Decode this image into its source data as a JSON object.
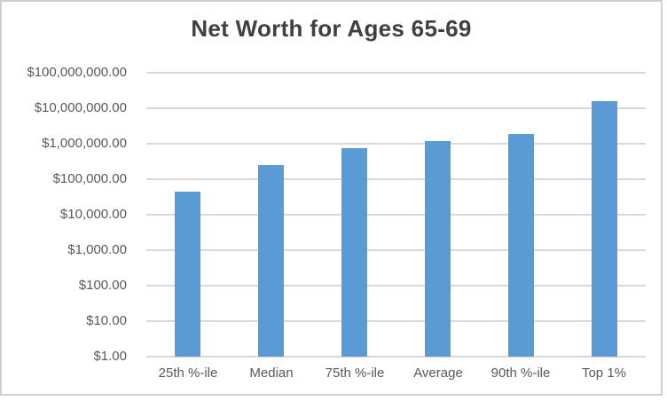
{
  "chart_data": {
    "type": "bar",
    "title": "Net Worth for Ages 65-69",
    "categories": [
      "25th %-ile",
      "Median",
      "75th %-ile",
      "Average",
      "90th %-ile",
      "Top 1%"
    ],
    "values": [
      44000,
      250000,
      760000,
      1200000,
      1900000,
      16000000
    ],
    "series_name": "Net Worth",
    "xlabel": "",
    "ylabel": "",
    "y_axis": {
      "scale": "log",
      "min": 1,
      "max": 100000000,
      "tick_labels": [
        "$1.00",
        "$10.00",
        "$100.00",
        "$1,000.00",
        "$10,000.00",
        "$100,000.00",
        "$1,000,000.00",
        "$10,000,000.00",
        "$100,000,000.00"
      ]
    },
    "grid": true,
    "legend": "none",
    "colors": {
      "bar": "#5B9BD5",
      "gridline": "#D9D9D9",
      "axis_line": "#D9D9D9",
      "title_text": "#404040",
      "axis_label_text": "#595959",
      "chart_border": "#D0CECE",
      "background": "#FFFFFF"
    }
  }
}
